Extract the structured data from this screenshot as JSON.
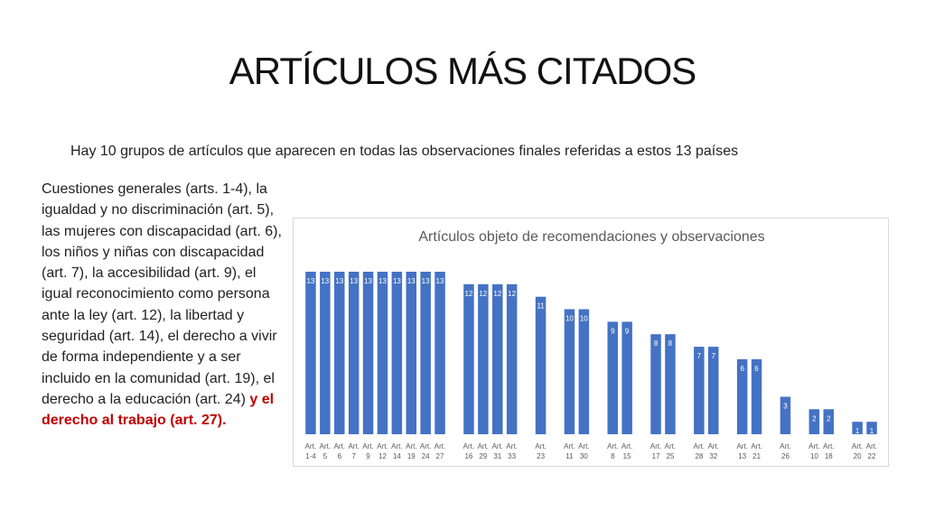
{
  "slide": {
    "title": "ARTÍCULOS MÁS CITADOS",
    "subtitle": "Hay 10 grupos de artículos que aparecen en todas las observaciones finales referidas a estos 13 países",
    "side_text": "Cuestiones generales (arts. 1-4), la igualdad y no discriminación (art. 5), las mujeres con discapacidad (art. 6), los niños y niñas con discapacidad (art. 7), la accesibilidad (art. 9), el igual reconocimiento como persona ante la ley (art. 12), la libertad y seguridad (art. 14), el derecho a vivir de forma independiente y a ser incluido en la comunidad (art. 19), el derecho a la educación (art. 24) ",
    "side_text_highlight": "y el derecho al trabajo (art. 27)."
  },
  "colors": {
    "bar": "#4472c4",
    "highlight": "#c00000"
  },
  "chart_data": {
    "type": "bar",
    "title": "Artículos objeto de recomendaciones y observaciones",
    "categories": [
      [
        "Art.",
        "1-4"
      ],
      [
        "Art.",
        "5"
      ],
      [
        "Art.",
        "6"
      ],
      [
        "Art.",
        "7"
      ],
      [
        "Art.",
        "9"
      ],
      [
        "Art.",
        "12"
      ],
      [
        "Art.",
        "14"
      ],
      [
        "Art.",
        "19"
      ],
      [
        "Art.",
        "24"
      ],
      [
        "Art.",
        "27"
      ],
      [
        "Art.",
        "16"
      ],
      [
        "Art.",
        "29"
      ],
      [
        "Art.",
        "31"
      ],
      [
        "Art.",
        "33"
      ],
      [
        "Art.",
        "23"
      ],
      [
        "Art.",
        "11"
      ],
      [
        "Art.",
        "30"
      ],
      [
        "Art.",
        "8"
      ],
      [
        "Art.",
        "15"
      ],
      [
        "Art.",
        "17"
      ],
      [
        "Art.",
        "25"
      ],
      [
        "Art.",
        "28"
      ],
      [
        "Art.",
        "32"
      ],
      [
        "Art.",
        "13"
      ],
      [
        "Art.",
        "21"
      ],
      [
        "Art.",
        "26"
      ],
      [
        "Art.",
        "10"
      ],
      [
        "Art.",
        "18"
      ],
      [
        "Art.",
        "20"
      ],
      [
        "Art.",
        "22"
      ]
    ],
    "values": [
      13,
      13,
      13,
      13,
      13,
      13,
      13,
      13,
      13,
      13,
      12,
      12,
      12,
      12,
      11,
      10,
      10,
      9,
      9,
      8,
      8,
      7,
      7,
      6,
      6,
      3,
      2,
      2,
      1,
      1
    ],
    "groups": [
      10,
      4,
      1,
      2,
      2,
      2,
      2,
      2,
      1,
      2,
      2
    ],
    "ylim": [
      0,
      13
    ],
    "data_labels": true,
    "grid": false,
    "legend": "none"
  }
}
